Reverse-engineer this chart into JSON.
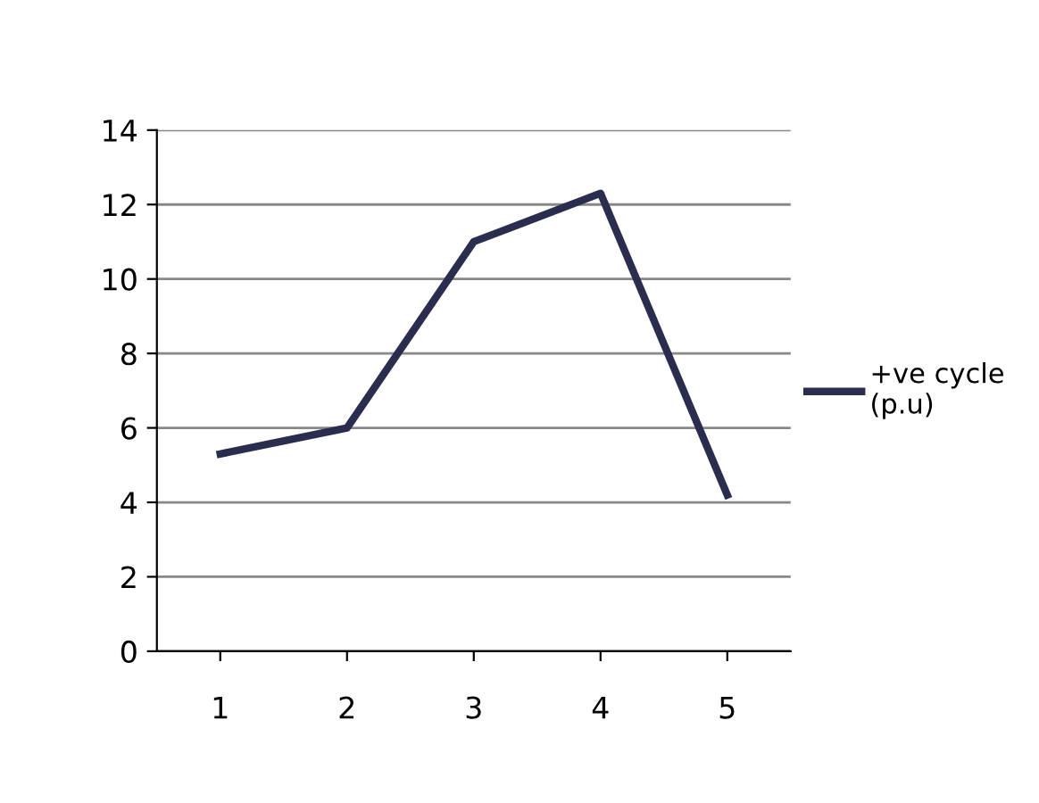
{
  "chart_data": {
    "type": "line",
    "categories": [
      "1",
      "2",
      "3",
      "4",
      "5"
    ],
    "series": [
      {
        "name": "+ve cycle (p.u)",
        "color": "#2b2d4f",
        "values": [
          5.3,
          6.0,
          11.0,
          12.3,
          4.2
        ]
      }
    ],
    "ylim": [
      0,
      14
    ],
    "yticks": [
      0,
      2,
      4,
      6,
      8,
      10,
      12,
      14
    ],
    "grid": "y",
    "legend": "right"
  }
}
